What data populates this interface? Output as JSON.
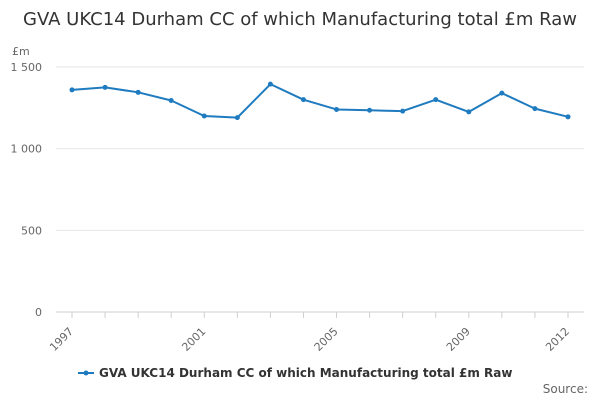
{
  "chart_data": {
    "type": "line",
    "title": "GVA UKC14 Durham CC of which Manufacturing total £m Raw",
    "ylabel": "£m",
    "xlabel": "",
    "x": [
      1997,
      1998,
      1999,
      2000,
      2001,
      2002,
      2003,
      2004,
      2005,
      2006,
      2007,
      2008,
      2009,
      2010,
      2011,
      2012
    ],
    "x_tick_labels": [
      "1997",
      "2001",
      "2005",
      "2009",
      "2012"
    ],
    "y_tick_labels": [
      "0",
      "500",
      "1 000",
      "1 500"
    ],
    "ylim": [
      0,
      1500
    ],
    "grid": true,
    "legend_position": "bottom",
    "series": [
      {
        "name": "GVA UKC14 Durham CC of which Manufacturing total £m Raw",
        "color": "#1f7bbf",
        "values": [
          1360,
          1375,
          1345,
          1295,
          1200,
          1190,
          1395,
          1300,
          1240,
          1235,
          1230,
          1300,
          1225,
          1340,
          1245,
          1195
        ]
      }
    ]
  },
  "source_label": "Source:"
}
